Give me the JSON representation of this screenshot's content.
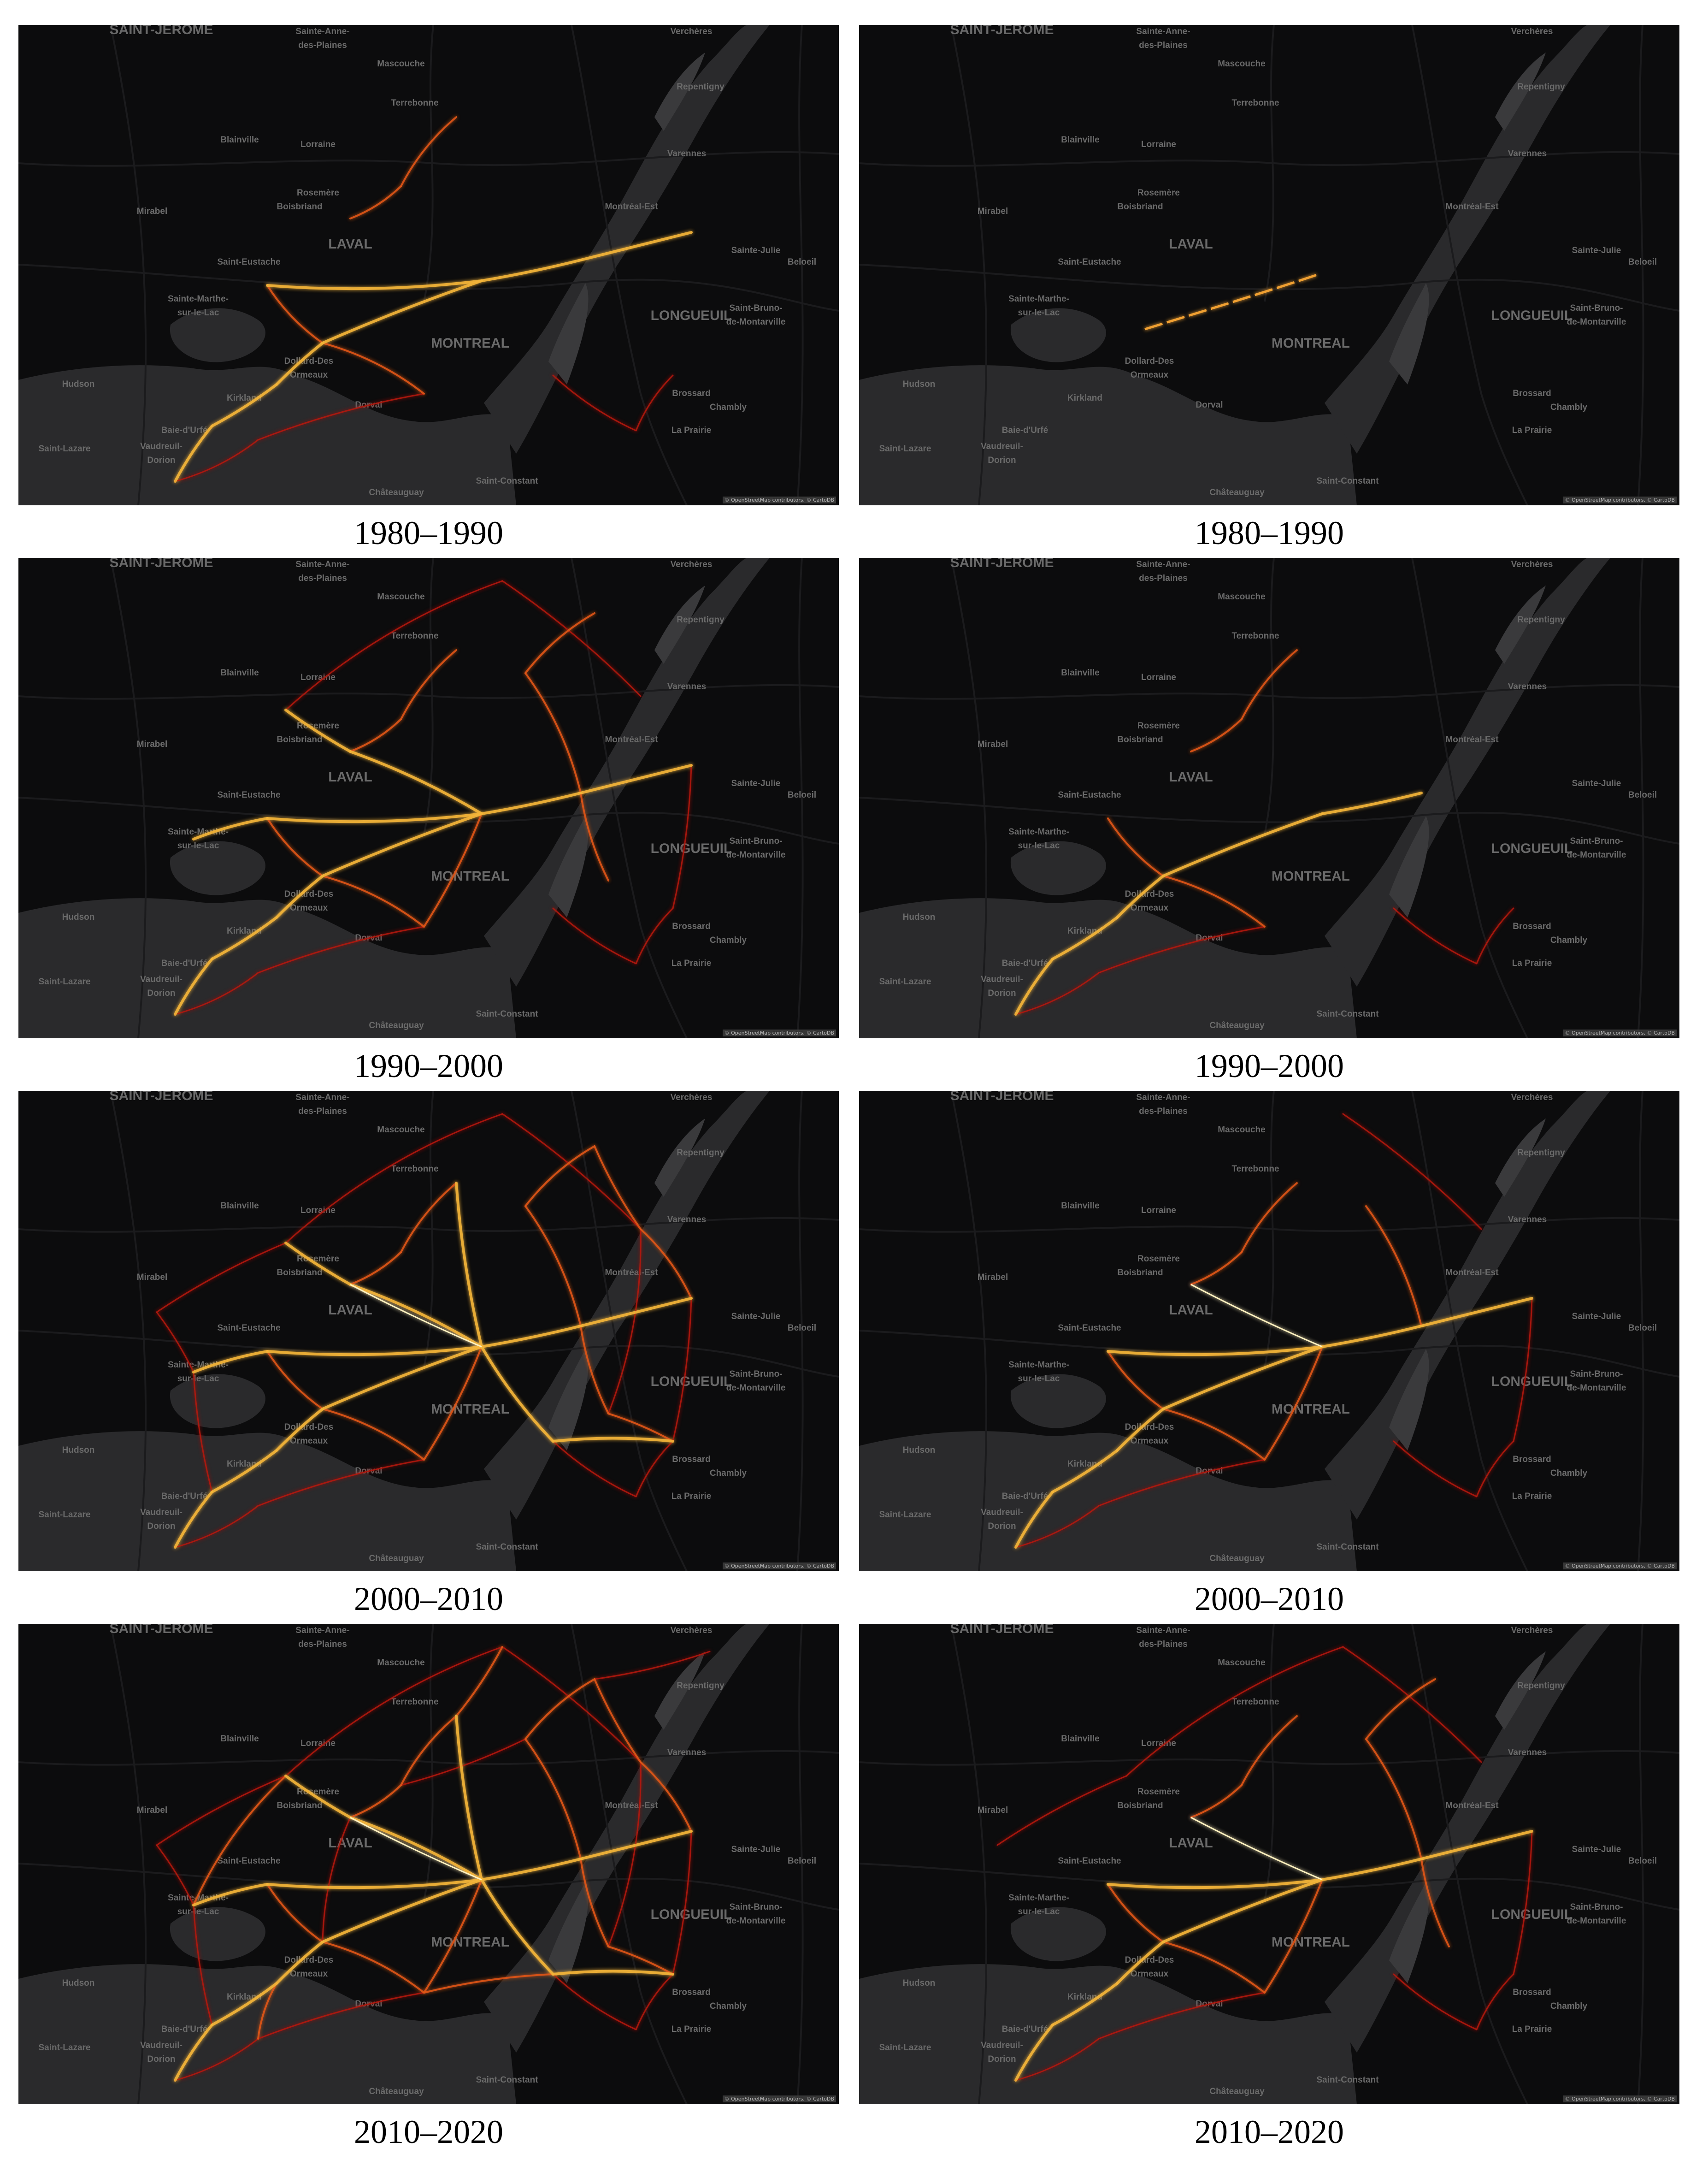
{
  "captions": [
    "1980–1990",
    "1980–1990",
    "1990–2000",
    "1990–2000",
    "2000–2010",
    "2000–2010",
    "2010–2020",
    "2010–2020"
  ],
  "attribution": "© OpenStreetMap contributors, © CartoDB",
  "places": [
    {
      "text": "SAINT-JÉRÔME",
      "big": true
    },
    {
      "text": "Sainte-Anne-",
      "big": false
    },
    {
      "text": "des-Plaines",
      "big": false
    },
    {
      "text": "Mascouche",
      "big": false
    },
    {
      "text": "Verchères",
      "big": false
    },
    {
      "text": "Terrebonne",
      "big": false
    },
    {
      "text": "Repentigny",
      "big": false
    },
    {
      "text": "Blainville",
      "big": false
    },
    {
      "text": "Lorraine",
      "big": false
    },
    {
      "text": "Varennes",
      "big": false
    },
    {
      "text": "Rosemère",
      "big": false
    },
    {
      "text": "Mirabel",
      "big": false
    },
    {
      "text": "Boisbriand",
      "big": false
    },
    {
      "text": "Montréal-Est",
      "big": false
    },
    {
      "text": "LAVAL",
      "big": true
    },
    {
      "text": "Saint-Eustache",
      "big": false
    },
    {
      "text": "Sainte-Julie",
      "big": false
    },
    {
      "text": "Beloeil",
      "big": false
    },
    {
      "text": "Sainte-Marthe-",
      "big": false
    },
    {
      "text": "sur-le-Lac",
      "big": false
    },
    {
      "text": "Saint-Bruno-",
      "big": false
    },
    {
      "text": "de-Montarville",
      "big": false
    },
    {
      "text": "LONGUEUIL",
      "big": true
    },
    {
      "text": "MONTREAL",
      "big": true
    },
    {
      "text": "Dollard-Des",
      "big": false
    },
    {
      "text": "Ormeaux",
      "big": false
    },
    {
      "text": "Hudson",
      "big": false
    },
    {
      "text": "Brossard",
      "big": false
    },
    {
      "text": "Kirkland",
      "big": false
    },
    {
      "text": "Dorval",
      "big": false
    },
    {
      "text": "Chambly",
      "big": false
    },
    {
      "text": "Baie-d'Urfé",
      "big": false
    },
    {
      "text": "La Prairie",
      "big": false
    },
    {
      "text": "Saint-Lazare",
      "big": false
    },
    {
      "text": "Vaudreuil-",
      "big": false
    },
    {
      "text": "Dorion",
      "big": false
    },
    {
      "text": "Saint-Constant",
      "big": false
    },
    {
      "text": "Châteauguay",
      "big": false
    }
  ]
}
